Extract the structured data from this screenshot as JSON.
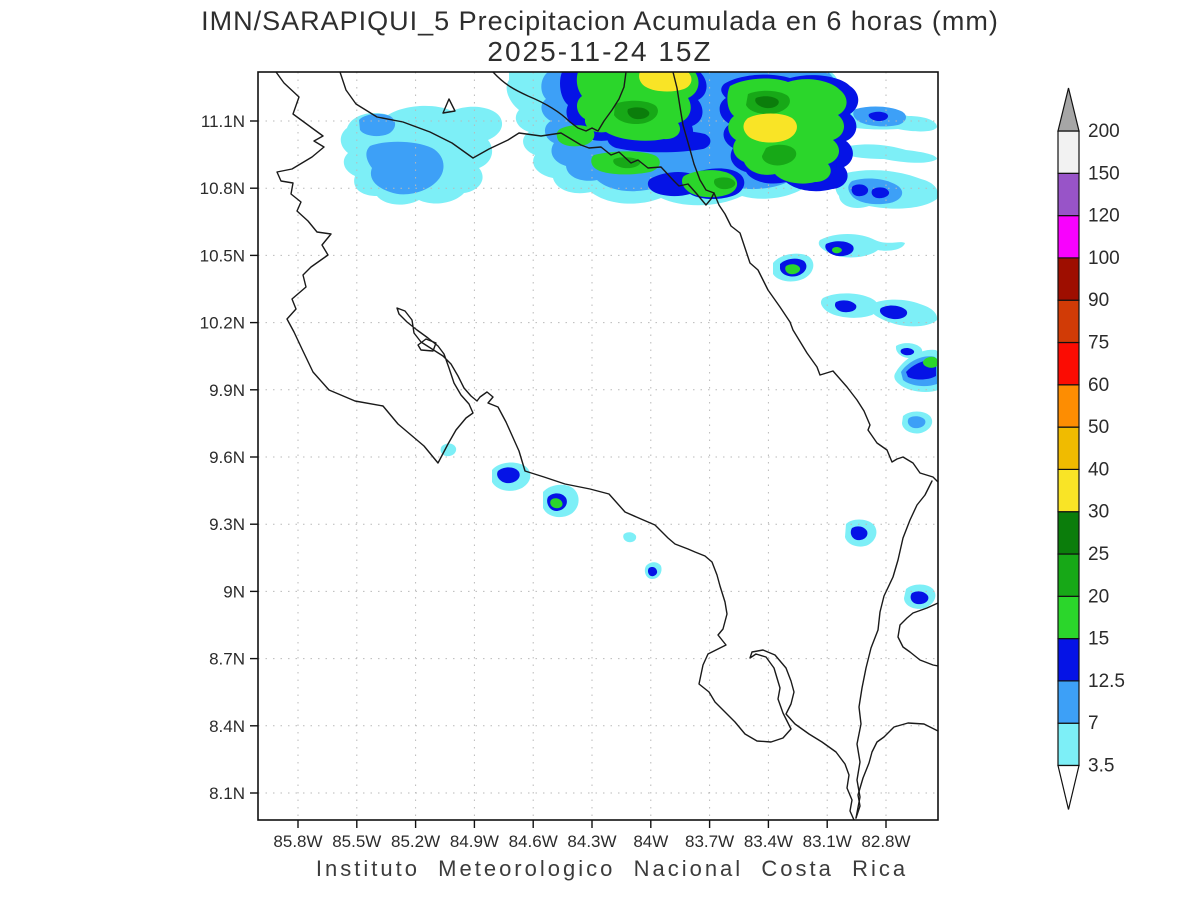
{
  "title": "IMN/SARAPIQUI_5 Precipitacion Acumulada en 6 horas (mm)",
  "subtitle": "2025-11-24 15Z",
  "footer": "Instituto  Meteorologico  Nacional  Costa  Rica",
  "map": {
    "x_ticks": [
      "85.8W",
      "85.5W",
      "85.2W",
      "84.9W",
      "84.6W",
      "84.3W",
      "84W",
      "83.7W",
      "83.4W",
      "83.1W",
      "82.8W"
    ],
    "y_ticks": [
      "11.1N",
      "10.8N",
      "10.5N",
      "10.2N",
      "9.9N",
      "9.6N",
      "9.3N",
      "9N",
      "8.7N",
      "8.4N",
      "8.1N"
    ]
  },
  "chart_data": {
    "type": "heatmap",
    "title": "IMN/SARAPIQUI_5 Precipitacion Acumulada en 6 horas (mm)",
    "valid_time": "2025-11-24 15Z",
    "source_caption": "Instituto Meteorologico Nacional Costa Rica",
    "xlabel_ticks": [
      "85.8W",
      "85.5W",
      "85.2W",
      "84.9W",
      "84.6W",
      "84.3W",
      "84W",
      "83.7W",
      "83.4W",
      "83.1W",
      "82.8W"
    ],
    "ylabel_ticks": [
      "11.1N",
      "10.8N",
      "10.5N",
      "10.2N",
      "9.9N",
      "9.6N",
      "9.3N",
      "9N",
      "8.7N",
      "8.4N",
      "8.1N"
    ],
    "grid": "dotted, every 0.3 degrees",
    "legend_position": "right vertical colorbar",
    "colorbar": {
      "units": "mm",
      "levels": [
        3.5,
        7,
        12.5,
        15,
        20,
        25,
        30,
        40,
        50,
        60,
        75,
        90,
        100,
        120,
        150,
        200
      ],
      "colors": [
        "#7deff7",
        "#3da0f7",
        "#0513e6",
        "#2bd62b",
        "#17a817",
        "#0b7d0b",
        "#f9e426",
        "#f0bb00",
        "#fd8d02",
        "#fb0c03",
        "#d13b06",
        "#9e0e00",
        "#f802fd",
        "#9854c8",
        "#f2f2f2"
      ],
      "over_arrow_color": "#a6a6a6",
      "under_arrow_color": "#ffffff"
    },
    "map_features": [
      "Costa Rica Pacific coastline",
      "Nicoya Peninsula and Gulf of Nicoya",
      "Osa Peninsula and Golfo Dulce",
      "Caribbean coastline",
      "Costa Rica - Nicaragua border",
      "Lake Nicaragua southern shore",
      "Costa Rica - Panama border"
    ],
    "precip_cells": [
      {
        "area": "northern border / Caribbean slope band",
        "approx_lat": "10.9-11.3N",
        "approx_lon": "84.4-83.3W",
        "max_range_mm": "30-40"
      },
      {
        "area": "over Lake Nicaragua (NW lobe)",
        "approx_lat": "10.9-11.1N",
        "approx_lon": "85.3-84.9W",
        "max_range_mm": "7-12.5"
      },
      {
        "area": "Caribbean cells near 10.45N",
        "approx_lat": "10.4-10.5N",
        "approx_lon": "83.4-83.1W",
        "max_range_mm": "15-20"
      },
      {
        "area": "Caribbean coast cell near right edge",
        "approx_lat": "9.9-10.0N",
        "approx_lon": "82.7-82.6W",
        "max_range_mm": "15-20"
      },
      {
        "area": "Pacific offshore cell",
        "approx_lat": "9.4N",
        "approx_lon": "84.45W",
        "max_range_mm": "15-20"
      },
      {
        "area": "Pacific offshore streak",
        "approx_lat": "9.5N",
        "approx_lon": "84.6W",
        "max_range_mm": "7-12.5"
      },
      {
        "area": "Pacific dot",
        "approx_lat": "9.1N",
        "approx_lon": "84.0W",
        "max_range_mm": "7-12.5"
      },
      {
        "area": "SE spot",
        "approx_lat": "9.25N",
        "approx_lon": "82.95W",
        "max_range_mm": "7-12.5"
      }
    ]
  }
}
